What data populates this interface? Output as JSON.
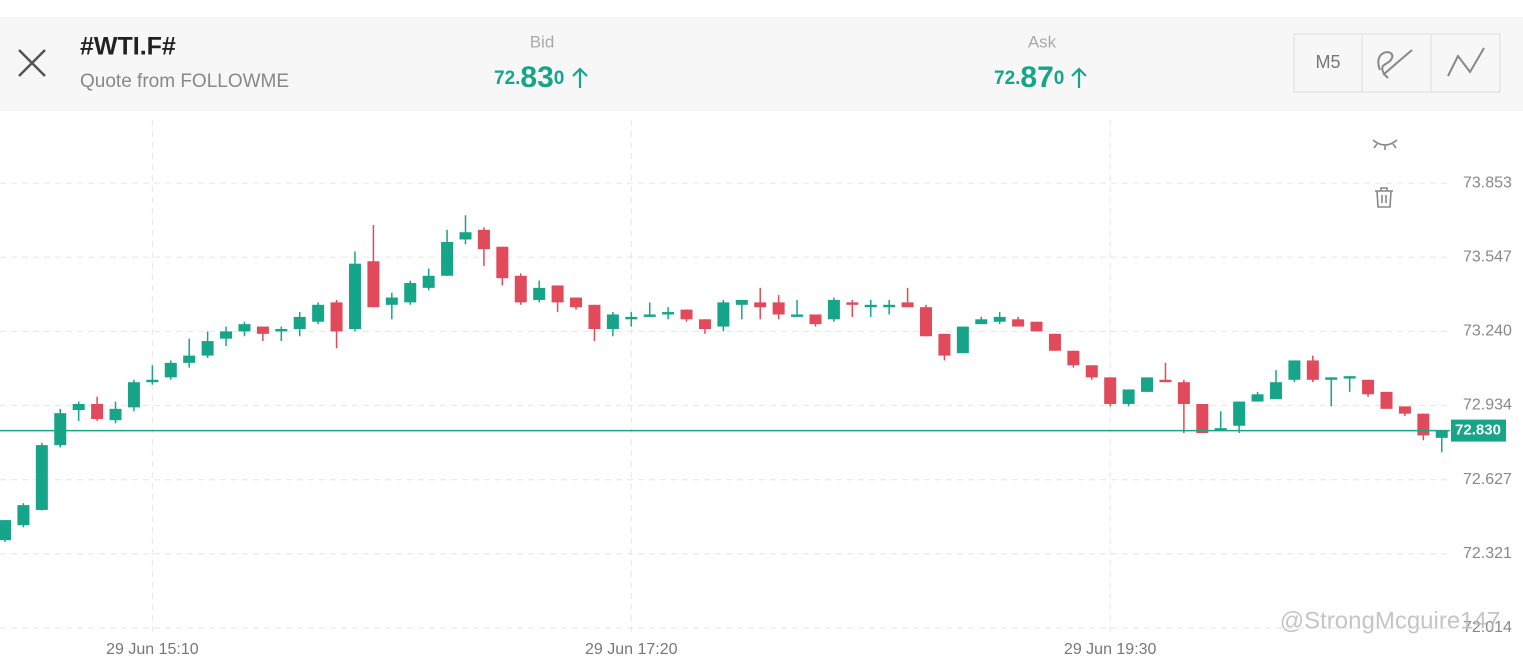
{
  "header": {
    "title": "#WTI.F#",
    "subtitle": "Quote from FOLLOWME",
    "bid": {
      "label": "Bid",
      "parts": [
        "72.",
        "83",
        "0"
      ]
    },
    "ask": {
      "label": "Ask",
      "parts": [
        "72.",
        "87",
        "0"
      ]
    },
    "timeframe": "M5"
  },
  "watermark": "@StrongMcguire147",
  "chart_data": {
    "type": "candlestick",
    "up_color": "#17a589",
    "down_color": "#e04a5a",
    "categories": [
      null,
      null,
      null,
      null,
      null,
      null,
      null,
      null,
      "29 Jun 15:10",
      null,
      null,
      null,
      null,
      null,
      null,
      null,
      null,
      null,
      null,
      null,
      null,
      null,
      null,
      null,
      null,
      null,
      null,
      null,
      null,
      null,
      null,
      null,
      null,
      null,
      "29 Jun 17:20",
      null,
      null,
      null,
      null,
      null,
      null,
      null,
      null,
      null,
      null,
      null,
      null,
      null,
      null,
      null,
      null,
      null,
      null,
      null,
      null,
      null,
      null,
      null,
      null,
      null,
      "29 Jun 19:30",
      null,
      null,
      null,
      null,
      null,
      null,
      null,
      null,
      null,
      null,
      null,
      null,
      null,
      null,
      null,
      null,
      null,
      null
    ],
    "open": [
      72.377,
      72.439,
      72.502,
      72.77,
      72.915,
      72.94,
      72.873,
      72.926,
      73.03,
      73.05,
      73.11,
      73.14,
      73.21,
      73.24,
      73.26,
      73.24,
      73.25,
      73.28,
      73.36,
      73.25,
      73.53,
      73.35,
      73.36,
      73.42,
      73.47,
      73.62,
      73.66,
      73.59,
      73.47,
      73.37,
      73.43,
      73.38,
      73.35,
      73.25,
      73.29,
      73.3,
      73.31,
      73.33,
      73.29,
      73.26,
      73.35,
      73.36,
      73.36,
      73.3,
      73.31,
      73.29,
      73.36,
      73.34,
      73.34,
      73.36,
      73.34,
      73.23,
      73.15,
      73.27,
      73.28,
      73.29,
      73.28,
      73.23,
      73.16,
      73.1,
      73.05,
      72.94,
      72.99,
      73.04,
      73.03,
      72.94,
      72.83,
      72.85,
      72.95,
      72.96,
      73.04,
      73.12,
      73.04,
      73.045,
      73.04,
      72.99,
      72.93,
      72.9,
      72.8
    ],
    "high": [
      72.46,
      72.53,
      72.78,
      72.92,
      72.95,
      72.97,
      72.95,
      73.04,
      73.1,
      73.12,
      73.21,
      73.24,
      73.26,
      73.28,
      73.26,
      73.26,
      73.32,
      73.36,
      73.37,
      73.57,
      73.68,
      73.4,
      73.45,
      73.5,
      73.66,
      73.72,
      73.67,
      73.59,
      73.48,
      73.45,
      73.43,
      73.38,
      73.35,
      73.32,
      73.32,
      73.36,
      73.34,
      73.33,
      73.29,
      73.37,
      73.37,
      73.42,
      73.39,
      73.37,
      73.31,
      73.38,
      73.37,
      73.37,
      73.37,
      73.42,
      73.35,
      73.23,
      73.26,
      73.3,
      73.32,
      73.3,
      73.28,
      73.23,
      73.16,
      73.1,
      73.05,
      73.0,
      73.05,
      73.11,
      73.04,
      72.94,
      72.91,
      72.95,
      72.99,
      73.08,
      73.12,
      73.14,
      73.05,
      73.055,
      73.04,
      72.99,
      72.93,
      72.9,
      72.83
    ],
    "low": [
      72.37,
      72.43,
      72.5,
      72.76,
      72.87,
      72.87,
      72.86,
      72.91,
      73.02,
      73.04,
      73.09,
      73.13,
      73.18,
      73.22,
      73.2,
      73.2,
      73.22,
      73.27,
      73.17,
      73.24,
      73.34,
      73.29,
      73.35,
      73.41,
      73.47,
      73.6,
      73.51,
      73.43,
      73.35,
      73.36,
      73.32,
      73.33,
      73.2,
      73.22,
      73.26,
      73.3,
      73.29,
      73.28,
      73.23,
      73.24,
      73.29,
      73.29,
      73.29,
      73.3,
      73.26,
      73.28,
      73.3,
      73.3,
      73.31,
      73.34,
      73.22,
      73.12,
      73.15,
      73.27,
      73.27,
      73.26,
      73.24,
      73.16,
      73.09,
      73.04,
      72.93,
      72.93,
      72.99,
      73.03,
      72.82,
      72.82,
      72.83,
      72.82,
      72.95,
      72.96,
      73.03,
      73.03,
      72.93,
      72.99,
      72.97,
      72.92,
      72.89,
      72.79,
      72.74
    ],
    "close": [
      72.46,
      72.522,
      72.77,
      72.902,
      72.94,
      72.878,
      72.92,
      73.03,
      73.04,
      73.11,
      73.14,
      73.2,
      73.24,
      73.27,
      73.23,
      73.25,
      73.3,
      73.35,
      73.24,
      73.52,
      73.34,
      73.38,
      73.44,
      73.47,
      73.61,
      73.65,
      73.58,
      73.46,
      73.36,
      73.42,
      73.36,
      73.34,
      73.25,
      73.31,
      73.3,
      73.31,
      73.32,
      73.29,
      73.25,
      73.36,
      73.37,
      73.34,
      73.31,
      73.31,
      73.27,
      73.37,
      73.35,
      73.35,
      73.35,
      73.34,
      73.22,
      73.14,
      73.26,
      73.29,
      73.3,
      73.26,
      73.24,
      73.16,
      73.1,
      73.05,
      72.94,
      73.0,
      73.05,
      73.03,
      72.94,
      72.82,
      72.84,
      72.95,
      72.98,
      73.03,
      73.12,
      73.04,
      73.05,
      73.055,
      72.98,
      72.92,
      72.9,
      72.81,
      72.83
    ],
    "ylim": [
      71.985,
      74.147
    ],
    "yticks": [
      73.853,
      73.547,
      {
        "value": 73.24,
        "label": "73.240"
      },
      72.934,
      72.627,
      72.321,
      72.014
    ],
    "last_price": {
      "value": 72.83,
      "label": "72.830"
    },
    "grid": true
  }
}
